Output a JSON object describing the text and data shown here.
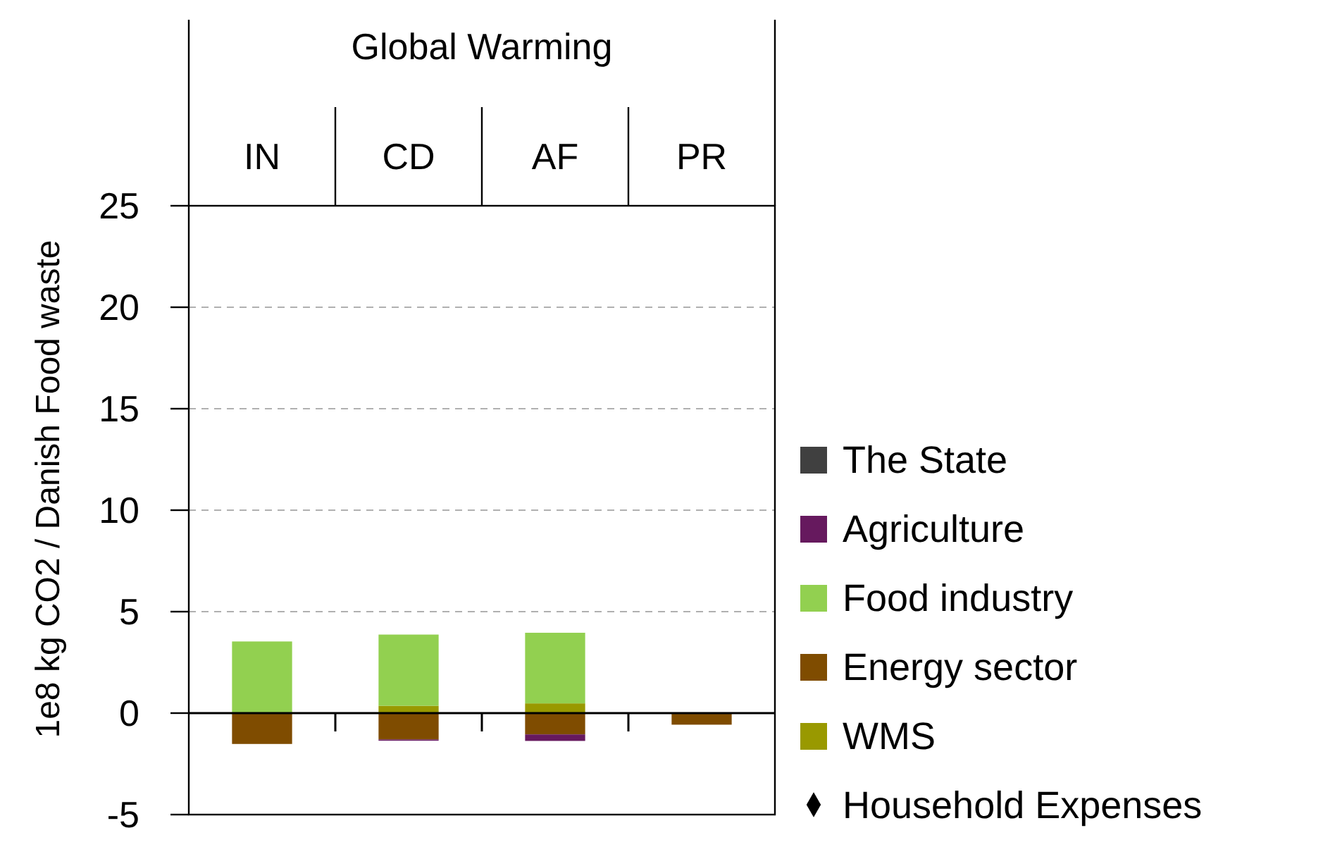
{
  "chart_data": {
    "type": "bar",
    "title": "Global Warming",
    "ylabel": "1e8 kg CO2 / Danish Food waste",
    "categories": [
      "IN",
      "CD",
      "AF",
      "PR"
    ],
    "stacked": true,
    "series": [
      {
        "name": "WMS",
        "color": "#999900",
        "values": [
          null,
          0.36,
          0.48,
          null
        ]
      },
      {
        "name": "Energy sector",
        "color": "#7f4c00",
        "values": [
          -1.52,
          -1.3,
          -1.05,
          -0.57
        ]
      },
      {
        "name": "Food industry",
        "color": "#92d050",
        "values": [
          3.53,
          3.51,
          3.48,
          null
        ]
      },
      {
        "name": "Agriculture",
        "color": "#66195e",
        "values": [
          null,
          -0.06,
          -0.32,
          null
        ]
      },
      {
        "name": "The State",
        "color": "#404040",
        "values": [
          null,
          null,
          null,
          null
        ]
      },
      {
        "name": "Household Expenses",
        "type": "scatter",
        "marker": "diamond",
        "color": "#000000",
        "values": [
          null,
          null,
          null,
          null
        ]
      }
    ],
    "ylim": [
      -5,
      25
    ],
    "yticks": [
      -5,
      0,
      5,
      10,
      15,
      20,
      25
    ],
    "grid": "y",
    "legend": "right"
  }
}
